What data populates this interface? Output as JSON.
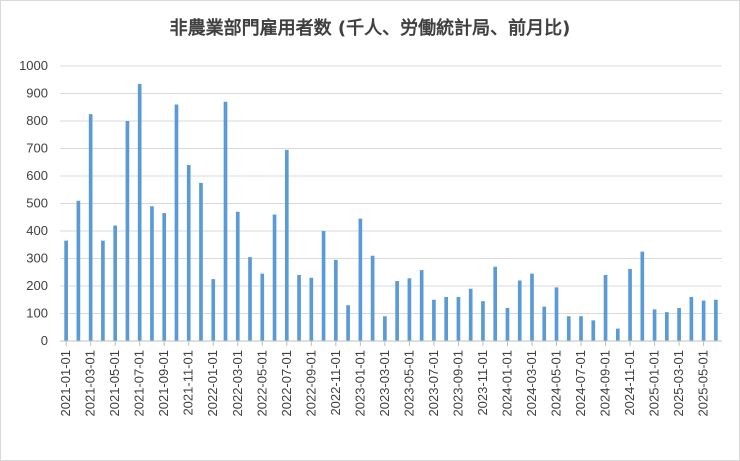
{
  "chart_data": {
    "type": "bar",
    "title": "非農業部門雇用者数 (千人、労働統計局、前月比)",
    "xlabel": "",
    "ylabel": "",
    "ylim": [
      0,
      1000
    ],
    "yticks": [
      0,
      100,
      200,
      300,
      400,
      500,
      600,
      700,
      800,
      900,
      1000
    ],
    "grid": true,
    "legend": "none",
    "bar_color": "#5b9bd5",
    "categories": [
      "2021-01-01",
      "2021-02-01",
      "2021-03-01",
      "2021-04-01",
      "2021-05-01",
      "2021-06-01",
      "2021-07-01",
      "2021-08-01",
      "2021-09-01",
      "2021-10-01",
      "2021-11-01",
      "2021-12-01",
      "2022-01-01",
      "2022-02-01",
      "2022-03-01",
      "2022-04-01",
      "2022-05-01",
      "2022-06-01",
      "2022-07-01",
      "2022-08-01",
      "2022-09-01",
      "2022-10-01",
      "2022-11-01",
      "2022-12-01",
      "2023-01-01",
      "2023-02-01",
      "2023-03-01",
      "2023-04-01",
      "2023-05-01",
      "2023-06-01",
      "2023-07-01",
      "2023-08-01",
      "2023-09-01",
      "2023-10-01",
      "2023-11-01",
      "2023-12-01",
      "2024-01-01",
      "2024-02-01",
      "2024-03-01",
      "2024-04-01",
      "2024-05-01",
      "2024-06-01",
      "2024-07-01",
      "2024-08-01",
      "2024-09-01",
      "2024-10-01",
      "2024-11-01",
      "2024-12-01",
      "2025-01-01",
      "2025-02-01",
      "2025-03-01",
      "2025-04-01",
      "2025-05-01",
      "2025-06-01"
    ],
    "xtick_labels": [
      "2021-01-01",
      "2021-03-01",
      "2021-05-01",
      "2021-07-01",
      "2021-09-01",
      "2021-11-01",
      "2022-01-01",
      "2022-03-01",
      "2022-05-01",
      "2022-07-01",
      "2022-09-01",
      "2022-11-01",
      "2023-01-01",
      "2023-03-01",
      "2023-05-01",
      "2023-07-01",
      "2023-09-01",
      "2023-11-01",
      "2024-01-01",
      "2024-03-01",
      "2024-05-01",
      "2024-07-01",
      "2024-09-01",
      "2024-11-01",
      "2025-01-01",
      "2025-03-01",
      "2025-05-01"
    ],
    "values": [
      365,
      510,
      825,
      365,
      420,
      800,
      935,
      490,
      465,
      860,
      640,
      575,
      225,
      870,
      470,
      305,
      245,
      460,
      695,
      240,
      230,
      400,
      295,
      130,
      445,
      310,
      90,
      218,
      228,
      258,
      150,
      160,
      160,
      190,
      145,
      270,
      120,
      220,
      245,
      125,
      195,
      90,
      90,
      75,
      240,
      45,
      262,
      325,
      115,
      105,
      120,
      160,
      147,
      150
    ]
  }
}
